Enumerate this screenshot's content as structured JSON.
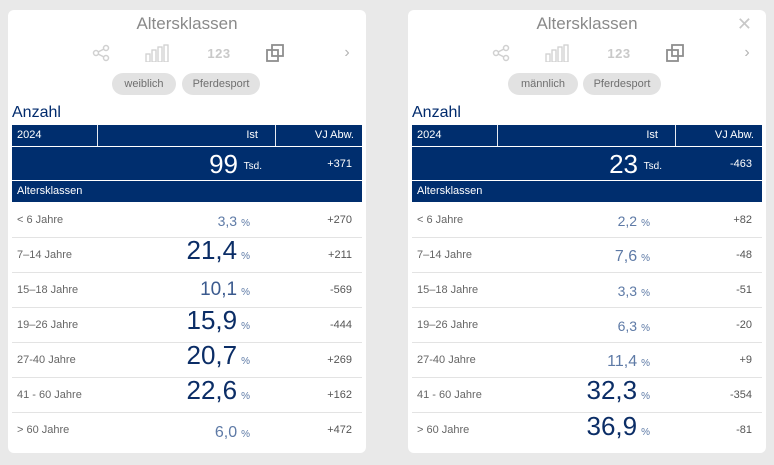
{
  "cards": [
    {
      "title": "Altersklassen",
      "chips": [
        "weiblich",
        "Pferdesport"
      ],
      "section": "Anzahl",
      "header": {
        "year": "2024",
        "ist": "Ist",
        "dev": "VJ Abw."
      },
      "total": {
        "value": "99",
        "unit": "Tsd.",
        "dev": "+371"
      },
      "subheader": "Altersklassen",
      "rows": [
        {
          "label": "< 6 Jahre",
          "value": "3,3",
          "unit": "%",
          "dev": "+270",
          "size": "s"
        },
        {
          "label": "7–14 Jahre",
          "value": "21,4",
          "unit": "%",
          "dev": "+211",
          "size": "xl"
        },
        {
          "label": "15–18 Jahre",
          "value": "10,1",
          "unit": "%",
          "dev": "-569",
          "size": "l"
        },
        {
          "label": "19–26 Jahre",
          "value": "15,9",
          "unit": "%",
          "dev": "-444",
          "size": "xl"
        },
        {
          "label": "27-40 Jahre",
          "value": "20,7",
          "unit": "%",
          "dev": "+269",
          "size": "xl"
        },
        {
          "label": "41 - 60 Jahre",
          "value": "22,6",
          "unit": "%",
          "dev": "+162",
          "size": "xl"
        },
        {
          "label": "> 60 Jahre",
          "value": "6,0",
          "unit": "%",
          "dev": "+472",
          "size": "m"
        }
      ]
    },
    {
      "title": "Altersklassen",
      "close": "✕",
      "chips": [
        "männlich",
        "Pferdesport"
      ],
      "section": "Anzahl",
      "header": {
        "year": "2024",
        "ist": "Ist",
        "dev": "VJ Abw."
      },
      "total": {
        "value": "23",
        "unit": "Tsd.",
        "dev": "-463"
      },
      "subheader": "Altersklassen",
      "rows": [
        {
          "label": "< 6 Jahre",
          "value": "2,2",
          "unit": "%",
          "dev": "+82",
          "size": "s"
        },
        {
          "label": "7–14 Jahre",
          "value": "7,6",
          "unit": "%",
          "dev": "-48",
          "size": "m"
        },
        {
          "label": "15–18 Jahre",
          "value": "3,3",
          "unit": "%",
          "dev": "-51",
          "size": "s"
        },
        {
          "label": "19–26 Jahre",
          "value": "6,3",
          "unit": "%",
          "dev": "-20",
          "size": "s"
        },
        {
          "label": "27-40 Jahre",
          "value": "11,4",
          "unit": "%",
          "dev": "+9",
          "size": "m"
        },
        {
          "label": "41 - 60 Jahre",
          "value": "32,3",
          "unit": "%",
          "dev": "-354",
          "size": "xl"
        },
        {
          "label": "> 60 Jahre",
          "value": "36,9",
          "unit": "%",
          "dev": "-81",
          "size": "xl"
        }
      ]
    }
  ],
  "toolbar": {
    "share_icon": "share-icon",
    "chart_icon": "bar-chart-icon",
    "number_text": "123",
    "copy_icon": "copy-icon",
    "next_icon": "chevron-right-icon",
    "next_glyph": "›"
  }
}
